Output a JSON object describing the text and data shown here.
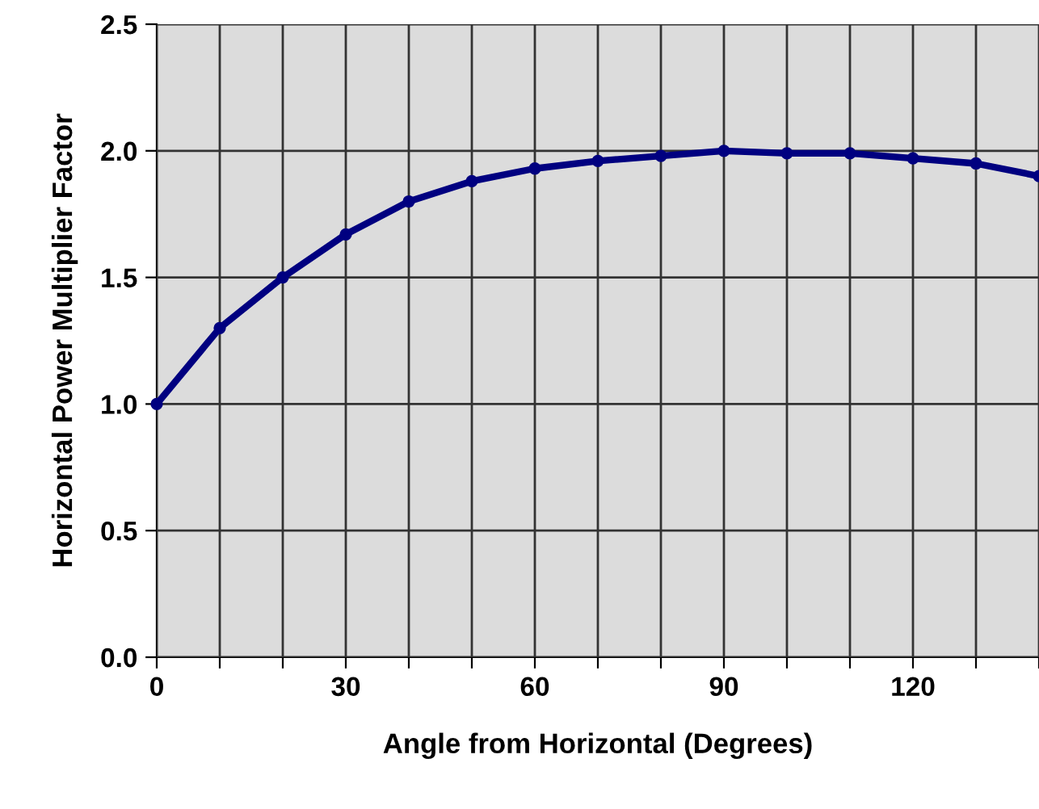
{
  "chart_data": {
    "type": "line",
    "xlabel": "Angle from Horizontal (Degrees)",
    "ylabel": "Horizontal Power Multiplier Factor",
    "x": [
      0,
      10,
      20,
      30,
      40,
      50,
      60,
      70,
      80,
      90,
      100,
      110,
      120,
      130,
      140
    ],
    "series": [
      {
        "color": "#000080",
        "values": [
          1.0,
          1.3,
          1.5,
          1.67,
          1.8,
          1.88,
          1.93,
          1.96,
          1.98,
          2.0,
          1.99,
          1.99,
          1.97,
          1.95,
          1.9
        ]
      }
    ],
    "xlim": [
      0,
      140
    ],
    "xticks": [
      0,
      {
        "value": 10,
        "label": null
      },
      {
        "value": 20,
        "label": null
      },
      30,
      {
        "value": 40,
        "label": null
      },
      {
        "value": 50,
        "label": null
      },
      60,
      {
        "value": 70,
        "label": null
      },
      {
        "value": 80,
        "label": null
      },
      90,
      {
        "value": 100,
        "label": null
      },
      {
        "value": 110,
        "label": null
      },
      120,
      {
        "value": 130,
        "label": null
      },
      {
        "value": 140,
        "label": null
      }
    ],
    "ylim": [
      0,
      2.5
    ],
    "yticks": [
      {
        "value": 0,
        "label": "0.0"
      },
      0.5,
      {
        "value": 1,
        "label": "1.0"
      },
      1.5,
      {
        "value": 2,
        "label": "2.0"
      },
      2.5
    ],
    "grid": true,
    "marker": "circle",
    "line_style": "solid"
  }
}
